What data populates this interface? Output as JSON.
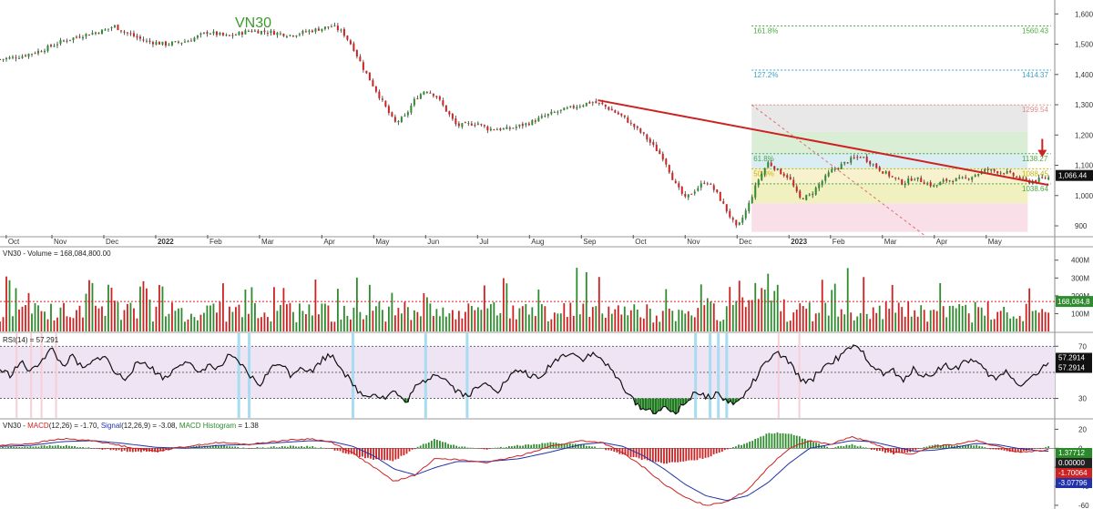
{
  "chart_data": {
    "type": "candlestick",
    "title": "VN30",
    "x_axis": {
      "labels": [
        {
          "text": "Oct",
          "t": 0.03
        },
        {
          "text": "Nov",
          "t": 0.25
        },
        {
          "text": "Dec",
          "t": 0.5
        },
        {
          "text": "2022",
          "t": 0.75,
          "bold": true
        },
        {
          "text": "Feb",
          "t": 1.0
        },
        {
          "text": "Mar",
          "t": 1.25
        },
        {
          "text": "Apr",
          "t": 1.55
        },
        {
          "text": "May",
          "t": 1.8
        },
        {
          "text": "Jun",
          "t": 2.05
        },
        {
          "text": "Jul",
          "t": 2.3
        },
        {
          "text": "Aug",
          "t": 2.55
        },
        {
          "text": "Sep",
          "t": 2.8
        },
        {
          "text": "Oct",
          "t": 3.05
        },
        {
          "text": "Nov",
          "t": 3.3
        },
        {
          "text": "Dec",
          "t": 3.55
        },
        {
          "text": "2023",
          "t": 3.8,
          "bold": true
        },
        {
          "text": "Feb",
          "t": 4.0
        },
        {
          "text": "Mar",
          "t": 4.25
        },
        {
          "text": "Apr",
          "t": 4.5
        },
        {
          "text": "May",
          "t": 4.75
        }
      ]
    },
    "price_panel": {
      "ylim": [
        870,
        1640
      ],
      "y_ticks": [
        900,
        1000,
        1100,
        1200,
        1300,
        1400,
        1500,
        1600
      ],
      "y_tick_labels": [
        "900",
        "1,000",
        "1,100",
        "1,200",
        "1,300",
        "1,400",
        "1,500",
        "1,600"
      ],
      "close_path": [
        [
          0.0,
          1450
        ],
        [
          0.1,
          1460
        ],
        [
          0.2,
          1480
        ],
        [
          0.3,
          1510
        ],
        [
          0.4,
          1530
        ],
        [
          0.5,
          1545
        ],
        [
          0.55,
          1560
        ],
        [
          0.6,
          1540
        ],
        [
          0.7,
          1510
        ],
        [
          0.8,
          1500
        ],
        [
          0.9,
          1510
        ],
        [
          1.0,
          1540
        ],
        [
          1.1,
          1525
        ],
        [
          1.2,
          1545
        ],
        [
          1.3,
          1540
        ],
        [
          1.4,
          1530
        ],
        [
          1.5,
          1545
        ],
        [
          1.6,
          1560
        ],
        [
          1.65,
          1540
        ],
        [
          1.7,
          1490
        ],
        [
          1.75,
          1420
        ],
        [
          1.8,
          1360
        ],
        [
          1.85,
          1300
        ],
        [
          1.9,
          1240
        ],
        [
          1.95,
          1260
        ],
        [
          2.0,
          1320
        ],
        [
          2.05,
          1350
        ],
        [
          2.1,
          1330
        ],
        [
          2.15,
          1280
        ],
        [
          2.2,
          1230
        ],
        [
          2.3,
          1240
        ],
        [
          2.35,
          1220
        ],
        [
          2.45,
          1220
        ],
        [
          2.55,
          1240
        ],
        [
          2.65,
          1270
        ],
        [
          2.75,
          1290
        ],
        [
          2.85,
          1310
        ],
        [
          2.9,
          1300
        ],
        [
          3.0,
          1260
        ],
        [
          3.05,
          1230
        ],
        [
          3.1,
          1200
        ],
        [
          3.2,
          1120
        ],
        [
          3.25,
          1040
        ],
        [
          3.3,
          990
        ],
        [
          3.35,
          1020
        ],
        [
          3.4,
          1050
        ],
        [
          3.45,
          1010
        ],
        [
          3.5,
          950
        ],
        [
          3.55,
          890
        ],
        [
          3.6,
          960
        ],
        [
          3.65,
          1050
        ],
        [
          3.7,
          1110
        ],
        [
          3.75,
          1080
        ],
        [
          3.8,
          1060
        ],
        [
          3.85,
          990
        ],
        [
          3.9,
          1000
        ],
        [
          3.95,
          1040
        ],
        [
          4.0,
          1080
        ],
        [
          4.1,
          1120
        ],
        [
          4.15,
          1130
        ],
        [
          4.25,
          1080
        ],
        [
          4.35,
          1040
        ],
        [
          4.4,
          1060
        ],
        [
          4.5,
          1030
        ],
        [
          4.55,
          1050
        ],
        [
          4.65,
          1055
        ],
        [
          4.75,
          1085
        ],
        [
          4.85,
          1075
        ],
        [
          4.95,
          1045
        ],
        [
          5.05,
          1060
        ]
      ],
      "trendline": {
        "from": [
          2.88,
          1315
        ],
        "to": [
          5.05,
          1035
        ],
        "color": "#cc2222"
      },
      "dashed_line": {
        "from": [
          3.62,
          1300
        ],
        "to": [
          4.45,
          870
        ],
        "color": "#e07070"
      },
      "fib_levels": [
        {
          "label": "161.8%",
          "value": 1560.43,
          "value_text": "1560.43",
          "color": "#4aa843"
        },
        {
          "label": "127.2%",
          "value": 1414.37,
          "value_text": "1414.37",
          "color": "#3aa0c8"
        },
        {
          "label": "",
          "value": 1299.54,
          "value_text": "1299.54",
          "color": "#e08a8a"
        },
        {
          "label": "61.8%",
          "value": 1138.27,
          "value_text": "1138.27",
          "color": "#4aa843"
        },
        {
          "label": "50.0%",
          "value": 1088.45,
          "value_text": "1088.45",
          "color": "#c8b400"
        },
        {
          "label": "",
          "value": 1038.64,
          "value_text": "1038.64",
          "color": "#4aa843"
        }
      ],
      "fib_zones": [
        {
          "from": 1210,
          "to": 1300,
          "color": "#e6e6e6"
        },
        {
          "from": 1138,
          "to": 1210,
          "color": "#d6ecd2"
        },
        {
          "from": 1088,
          "to": 1138,
          "color": "#d6ebf2"
        },
        {
          "from": 1038,
          "to": 1088,
          "color": "#f6f1c8"
        },
        {
          "from": 975,
          "to": 1038,
          "color": "#eef0b8"
        },
        {
          "from": 880,
          "to": 975,
          "color": "#f8dce6"
        }
      ],
      "last_price": "1,066.44",
      "down_arrow_color": "#cc2222"
    },
    "volume_panel": {
      "title": "VN30 - Volume = 168,084,800.00",
      "ylim": [
        0,
        470
      ],
      "y_ticks": [
        100,
        200,
        300,
        400
      ],
      "y_tick_labels": [
        "100M",
        "200M",
        "300M",
        "400M"
      ],
      "reference": 168.08,
      "last_label": "168,084,8"
    },
    "rsi_panel": {
      "title": "RSI(14) = 57.291",
      "ylim": [
        15,
        80
      ],
      "y_ticks": [
        30,
        70
      ],
      "y_tick_labels": [
        "30",
        "70"
      ],
      "band": [
        30,
        70
      ],
      "mid": 50,
      "last_labels": [
        "57.2914",
        "57.2914"
      ],
      "path": [
        [
          0.0,
          52
        ],
        [
          0.05,
          48
        ],
        [
          0.1,
          58
        ],
        [
          0.15,
          50
        ],
        [
          0.2,
          60
        ],
        [
          0.25,
          68
        ],
        [
          0.3,
          55
        ],
        [
          0.35,
          62
        ],
        [
          0.4,
          52
        ],
        [
          0.45,
          58
        ],
        [
          0.5,
          64
        ],
        [
          0.55,
          50
        ],
        [
          0.6,
          45
        ],
        [
          0.65,
          55
        ],
        [
          0.7,
          58
        ],
        [
          0.75,
          50
        ],
        [
          0.8,
          45
        ],
        [
          0.85,
          55
        ],
        [
          0.9,
          60
        ],
        [
          0.95,
          48
        ],
        [
          1.0,
          56
        ],
        [
          1.05,
          52
        ],
        [
          1.1,
          62
        ],
        [
          1.15,
          58
        ],
        [
          1.2,
          48
        ],
        [
          1.25,
          40
        ],
        [
          1.3,
          52
        ],
        [
          1.35,
          58
        ],
        [
          1.4,
          48
        ],
        [
          1.45,
          55
        ],
        [
          1.5,
          50
        ],
        [
          1.55,
          60
        ],
        [
          1.6,
          64
        ],
        [
          1.65,
          52
        ],
        [
          1.7,
          40
        ],
        [
          1.75,
          32
        ],
        [
          1.8,
          34
        ],
        [
          1.85,
          30
        ],
        [
          1.9,
          36
        ],
        [
          1.95,
          26
        ],
        [
          2.0,
          38
        ],
        [
          2.05,
          44
        ],
        [
          2.1,
          50
        ],
        [
          2.15,
          44
        ],
        [
          2.2,
          36
        ],
        [
          2.25,
          32
        ],
        [
          2.3,
          38
        ],
        [
          2.35,
          42
        ],
        [
          2.4,
          36
        ],
        [
          2.45,
          46
        ],
        [
          2.5,
          52
        ],
        [
          2.55,
          48
        ],
        [
          2.6,
          44
        ],
        [
          2.65,
          56
        ],
        [
          2.7,
          62
        ],
        [
          2.75,
          66
        ],
        [
          2.8,
          60
        ],
        [
          2.85,
          64
        ],
        [
          2.9,
          60
        ],
        [
          2.95,
          50
        ],
        [
          3.0,
          40
        ],
        [
          3.05,
          28
        ],
        [
          3.1,
          22
        ],
        [
          3.15,
          20
        ],
        [
          3.2,
          22
        ],
        [
          3.25,
          19
        ],
        [
          3.3,
          26
        ],
        [
          3.35,
          36
        ],
        [
          3.4,
          30
        ],
        [
          3.45,
          34
        ],
        [
          3.5,
          28
        ],
        [
          3.55,
          26
        ],
        [
          3.6,
          36
        ],
        [
          3.65,
          48
        ],
        [
          3.7,
          60
        ],
        [
          3.75,
          64
        ],
        [
          3.8,
          58
        ],
        [
          3.85,
          46
        ],
        [
          3.9,
          42
        ],
        [
          3.95,
          52
        ],
        [
          4.0,
          58
        ],
        [
          4.05,
          62
        ],
        [
          4.1,
          70
        ],
        [
          4.15,
          66
        ],
        [
          4.2,
          56
        ],
        [
          4.25,
          48
        ],
        [
          4.3,
          52
        ],
        [
          4.35,
          42
        ],
        [
          4.4,
          54
        ],
        [
          4.45,
          46
        ],
        [
          4.5,
          50
        ],
        [
          4.55,
          56
        ],
        [
          4.6,
          52
        ],
        [
          4.65,
          60
        ],
        [
          4.7,
          58
        ],
        [
          4.75,
          50
        ],
        [
          4.8,
          44
        ],
        [
          4.85,
          52
        ],
        [
          4.9,
          40
        ],
        [
          4.95,
          44
        ],
        [
          5.0,
          50
        ],
        [
          5.05,
          57
        ]
      ],
      "cyan_markers": [
        1.15,
        1.2,
        1.7,
        2.05,
        2.25,
        3.35,
        3.42,
        3.46,
        3.5
      ],
      "pink_markers": [
        0.08,
        0.15,
        0.2,
        0.27,
        3.75,
        3.85
      ]
    },
    "macd_panel": {
      "title_parts": [
        {
          "text": "VN30 - ",
          "color": "#222222"
        },
        {
          "text": "MACD",
          "color": "#cc2222"
        },
        {
          "text": "(12,26) = -1.70, ",
          "color": "#222222"
        },
        {
          "text": "Signal",
          "color": "#2233aa"
        },
        {
          "text": "(12,26,9) = -3.08, ",
          "color": "#222222"
        },
        {
          "text": "MACD Histogram",
          "color": "#2a8a2a"
        },
        {
          "text": " = 1.38",
          "color": "#222222"
        }
      ],
      "ylim": [
        -62,
        30
      ],
      "y_ticks": [
        20,
        0,
        -20,
        -40,
        -60
      ],
      "y_tick_labels": [
        "20",
        "0",
        "-20",
        "-40",
        "-60"
      ],
      "last_labels": [
        {
          "text": "1.37712",
          "bg": "#2a8a2a"
        },
        {
          "text": "0.00000",
          "bg": "#222222"
        },
        {
          "text": "-1.70064",
          "bg": "#cc2222"
        },
        {
          "text": "-3.07796",
          "bg": "#2233aa"
        }
      ],
      "macd_path": [
        [
          0.0,
          3
        ],
        [
          0.15,
          5
        ],
        [
          0.3,
          10
        ],
        [
          0.45,
          8
        ],
        [
          0.6,
          2
        ],
        [
          0.75,
          -3
        ],
        [
          0.9,
          2
        ],
        [
          1.05,
          6
        ],
        [
          1.2,
          4
        ],
        [
          1.35,
          8
        ],
        [
          1.5,
          10
        ],
        [
          1.6,
          6
        ],
        [
          1.7,
          -5
        ],
        [
          1.8,
          -20
        ],
        [
          1.9,
          -35
        ],
        [
          2.0,
          -28
        ],
        [
          2.1,
          -10
        ],
        [
          2.2,
          -12
        ],
        [
          2.35,
          -15
        ],
        [
          2.5,
          -8
        ],
        [
          2.65,
          2
        ],
        [
          2.8,
          8
        ],
        [
          2.9,
          6
        ],
        [
          3.0,
          -5
        ],
        [
          3.1,
          -20
        ],
        [
          3.2,
          -38
        ],
        [
          3.3,
          -52
        ],
        [
          3.4,
          -60
        ],
        [
          3.5,
          -56
        ],
        [
          3.6,
          -44
        ],
        [
          3.7,
          -20
        ],
        [
          3.8,
          0
        ],
        [
          3.9,
          8
        ],
        [
          4.0,
          4
        ],
        [
          4.1,
          12
        ],
        [
          4.2,
          6
        ],
        [
          4.3,
          -4
        ],
        [
          4.4,
          -6
        ],
        [
          4.5,
          2
        ],
        [
          4.6,
          4
        ],
        [
          4.7,
          8
        ],
        [
          4.8,
          2
        ],
        [
          4.9,
          -4
        ],
        [
          5.0,
          -3
        ],
        [
          5.05,
          -1.7
        ]
      ],
      "signal_path": [
        [
          0.0,
          2
        ],
        [
          0.15,
          3
        ],
        [
          0.3,
          7
        ],
        [
          0.45,
          8
        ],
        [
          0.6,
          5
        ],
        [
          0.75,
          1
        ],
        [
          0.9,
          0
        ],
        [
          1.05,
          3
        ],
        [
          1.2,
          4
        ],
        [
          1.35,
          6
        ],
        [
          1.5,
          8
        ],
        [
          1.6,
          7
        ],
        [
          1.7,
          2
        ],
        [
          1.8,
          -8
        ],
        [
          1.9,
          -22
        ],
        [
          2.0,
          -28
        ],
        [
          2.1,
          -20
        ],
        [
          2.2,
          -14
        ],
        [
          2.35,
          -14
        ],
        [
          2.5,
          -11
        ],
        [
          2.65,
          -4
        ],
        [
          2.8,
          4
        ],
        [
          2.9,
          6
        ],
        [
          3.0,
          2
        ],
        [
          3.1,
          -8
        ],
        [
          3.2,
          -22
        ],
        [
          3.3,
          -38
        ],
        [
          3.4,
          -50
        ],
        [
          3.5,
          -55
        ],
        [
          3.6,
          -50
        ],
        [
          3.7,
          -36
        ],
        [
          3.8,
          -16
        ],
        [
          3.9,
          0
        ],
        [
          4.0,
          4
        ],
        [
          4.1,
          8
        ],
        [
          4.2,
          7
        ],
        [
          4.3,
          2
        ],
        [
          4.4,
          -3
        ],
        [
          4.5,
          -2
        ],
        [
          4.6,
          1
        ],
        [
          4.7,
          5
        ],
        [
          4.8,
          4
        ],
        [
          4.9,
          0
        ],
        [
          5.0,
          -2.5
        ],
        [
          5.05,
          -3.08
        ]
      ]
    }
  }
}
